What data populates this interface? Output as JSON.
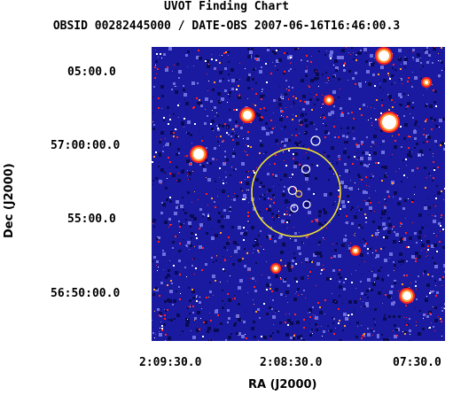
{
  "header": {
    "title": "UVOT Finding Chart",
    "subtitle": "OBSID 00282445000 / DATE-OBS 2007-06-16T16:46:00.3"
  },
  "axes": {
    "y_label": "Dec (J2000)",
    "x_label": "RA (J2000)",
    "dec_ticks": [
      "05:00.0",
      "57:00:00.0",
      "55:00.0",
      "56:50:00.0"
    ],
    "ra_ticks": [
      "2:09:30.0",
      "2:08:30.0",
      "07:30.0"
    ]
  },
  "image": {
    "description_colors": {
      "background": "#1a1aa0",
      "noise_dark": "#0a0a55",
      "noise_light": "#6f6fe0",
      "source_red": "#ff2020",
      "source_white": "#ffffff",
      "source_orange": "#ff9a30",
      "circle": "#f0e030"
    }
  }
}
